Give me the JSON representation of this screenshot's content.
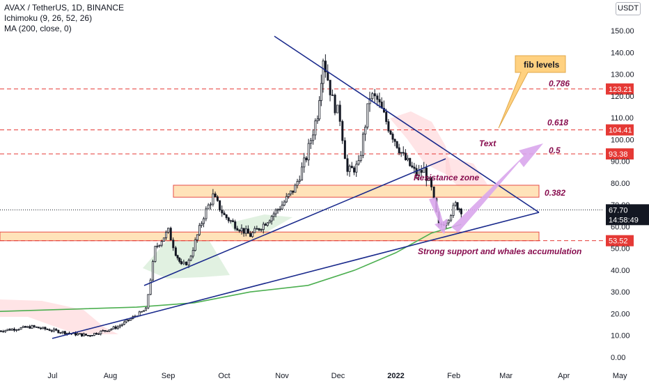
{
  "header": {
    "symbol_line": "AVAX / TetherUS, 1D, BINANCE",
    "indicator_1": "Ichimoku (9, 26, 52, 26)",
    "indicator_2": "MA (200, close, 0)",
    "currency": "USDT"
  },
  "colors": {
    "candle": "#131722",
    "ma_line": "#4caf50",
    "trend_line": "#1a2a8c",
    "level_line": "#e53935",
    "zone_fill": "#ffe0b2",
    "zone_border": "#e53935",
    "annotation": "#880e4f",
    "arrow": "#d9a6ec",
    "callout_fill": "#ffd180",
    "price_tag": "#131722"
  },
  "chart_data": {
    "type": "candlestick",
    "title": "AVAX / TetherUS, 1D, BINANCE",
    "ylim": [
      -2,
      160
    ],
    "y_ticks": [
      "150.00",
      "140.00",
      "130.00",
      "120.00",
      "110.00",
      "100.00",
      "90.00",
      "80.00",
      "70.00",
      "60.00",
      "50.00",
      "40.00",
      "30.00",
      "20.00",
      "10.00",
      "0.00"
    ],
    "x_ticks": [
      "Jul",
      "Aug",
      "Sep",
      "Oct",
      "Nov",
      "Dec",
      "2022",
      "Feb",
      "Mar",
      "Apr",
      "May"
    ],
    "price_path": [
      {
        "date": "2021-06-01",
        "close": 12
      },
      {
        "date": "2021-06-20",
        "close": 14
      },
      {
        "date": "2021-07-10",
        "close": 11
      },
      {
        "date": "2021-07-20",
        "close": 10
      },
      {
        "date": "2021-08-05",
        "close": 14
      },
      {
        "date": "2021-08-20",
        "close": 22
      },
      {
        "date": "2021-08-25",
        "close": 50
      },
      {
        "date": "2021-09-01",
        "close": 58
      },
      {
        "date": "2021-09-05",
        "close": 48
      },
      {
        "date": "2021-09-08",
        "close": 42
      },
      {
        "date": "2021-09-12",
        "close": 44
      },
      {
        "date": "2021-09-20",
        "close": 65
      },
      {
        "date": "2021-09-25",
        "close": 74
      },
      {
        "date": "2021-10-01",
        "close": 65
      },
      {
        "date": "2021-10-08",
        "close": 60
      },
      {
        "date": "2021-10-15",
        "close": 56
      },
      {
        "date": "2021-10-22",
        "close": 61
      },
      {
        "date": "2021-11-01",
        "close": 70
      },
      {
        "date": "2021-11-08",
        "close": 78
      },
      {
        "date": "2021-11-14",
        "close": 92
      },
      {
        "date": "2021-11-20",
        "close": 112
      },
      {
        "date": "2021-11-23",
        "close": 138
      },
      {
        "date": "2021-11-28",
        "close": 118
      },
      {
        "date": "2021-12-02",
        "close": 110
      },
      {
        "date": "2021-12-06",
        "close": 85
      },
      {
        "date": "2021-12-12",
        "close": 88
      },
      {
        "date": "2021-12-18",
        "close": 120
      },
      {
        "date": "2021-12-22",
        "close": 118
      },
      {
        "date": "2021-12-28",
        "close": 106
      },
      {
        "date": "2022-01-05",
        "close": 92
      },
      {
        "date": "2022-01-12",
        "close": 84
      },
      {
        "date": "2022-01-16",
        "close": 86
      },
      {
        "date": "2022-01-20",
        "close": 77
      },
      {
        "date": "2022-01-24",
        "close": 60
      },
      {
        "date": "2022-01-28",
        "close": 63
      },
      {
        "date": "2022-02-02",
        "close": 70
      },
      {
        "date": "2022-02-05",
        "close": 67.7
      }
    ],
    "ma200": [
      {
        "date": "2021-06-01",
        "value": 21
      },
      {
        "date": "2021-08-15",
        "value": 23
      },
      {
        "date": "2021-09-15",
        "value": 25
      },
      {
        "date": "2021-10-15",
        "value": 30
      },
      {
        "date": "2021-11-15",
        "value": 33
      },
      {
        "date": "2021-12-10",
        "value": 40
      },
      {
        "date": "2022-01-01",
        "value": 48
      },
      {
        "date": "2022-01-20",
        "value": 57
      },
      {
        "date": "2022-02-05",
        "value": 61
      }
    ],
    "levels": [
      {
        "label": "0.786",
        "price": "123.21",
        "value": 123.21
      },
      {
        "label": "0.618",
        "price": "104.41",
        "value": 104.41
      },
      {
        "label": "0.5",
        "price": "93.38",
        "value": 93.38
      },
      {
        "label": "",
        "price": "53.52",
        "value": 53.52
      }
    ],
    "current": {
      "price": "67.70",
      "countdown": "14:58:49",
      "value": 67.7
    },
    "zones": [
      {
        "label": "Resistance zone",
        "from": 73.5,
        "to": 79
      },
      {
        "label": "Strong support and whales accumulation",
        "from": 53.5,
        "to": 57.5
      }
    ],
    "annotations": {
      "fib_callout": "fib levels",
      "text_note": "Text",
      "level_0382": "0.382",
      "resistance": "Resistance zone",
      "support": "Strong support and whales accumulation"
    }
  }
}
